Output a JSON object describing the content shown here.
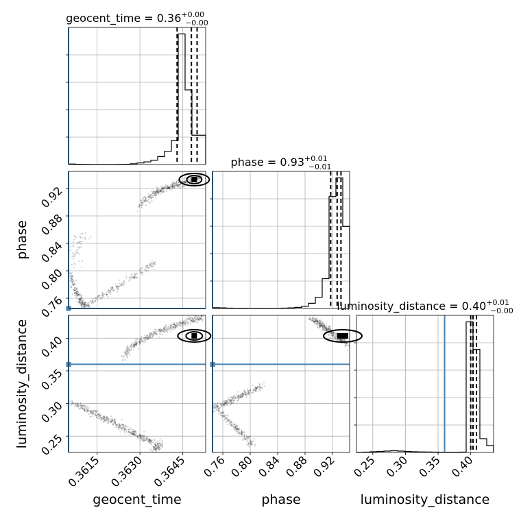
{
  "chart_data": {
    "type": "corner",
    "parameters": [
      "geocent_time",
      "phase",
      "luminosity_distance"
    ],
    "axis_labels": [
      "geocent_time",
      "phase",
      "luminosity_distance"
    ],
    "grid": true,
    "truths": {
      "geocent_time": 3.6005,
      "phase": 0.745,
      "luminosity_distance": 0.36
    },
    "truth_color": "#4682b4",
    "diagonal": [
      {
        "param": "geocent_time",
        "title_main": "geocent_time = 0.36",
        "title_sup": "+0.00",
        "title_sub": "−0.00",
        "xlim": [
          3.6005,
          3.6053
        ],
        "ticks": [
          3.6015,
          3.603,
          3.6045
        ],
        "tick_labels": [
          "0.3615",
          "0.3630",
          "0.3645"
        ],
        "quantiles": [
          3.6043,
          3.6048,
          3.605
        ],
        "bin_edges": [
          3.6005,
          3.60074,
          3.60098,
          3.60122,
          3.60146,
          3.6017,
          3.60194,
          3.60218,
          3.60242,
          3.60266,
          3.6029,
          3.60314,
          3.60338,
          3.60362,
          3.60386,
          3.6041,
          3.60434,
          3.60458,
          3.60482,
          3.60506,
          3.6053
        ],
        "counts": [
          1,
          0.5,
          0.3,
          0.2,
          0.2,
          0.2,
          0.2,
          0.3,
          0.5,
          1.5,
          3,
          5,
          8,
          15,
          25,
          45,
          245,
          140,
          55,
          55
        ]
      },
      {
        "param": "phase",
        "title_main": "phase = 0.93",
        "title_sup": "+0.01",
        "title_sub": "−0.01",
        "xlim": [
          0.745,
          0.945
        ],
        "ticks": [
          0.76,
          0.8,
          0.84,
          0.88,
          0.92
        ],
        "tick_labels": [
          "0.76",
          "0.80",
          "0.84",
          "0.88",
          "0.92"
        ],
        "quantiles": [
          0.9174,
          0.9268,
          0.9324
        ],
        "bin_edges": [
          0.745,
          0.755,
          0.765,
          0.775,
          0.785,
          0.795,
          0.805,
          0.815,
          0.825,
          0.835,
          0.845,
          0.855,
          0.865,
          0.875,
          0.885,
          0.895,
          0.905,
          0.915,
          0.925,
          0.935,
          0.945
        ],
        "counts": [
          1,
          0.8,
          0.5,
          0.4,
          0.4,
          0.3,
          0.2,
          0.2,
          0.3,
          0.3,
          0.5,
          0.8,
          1.5,
          3,
          7,
          15,
          40,
          150,
          175,
          110
        ]
      },
      {
        "param": "luminosity_distance",
        "title_main": "luminosity_distance = 0.40",
        "title_sup": "+0.01",
        "title_sub": "−0.00",
        "xlim": [
          0.225,
          0.435
        ],
        "ticks": [
          0.25,
          0.3,
          0.35,
          0.4
        ],
        "tick_labels": [
          "0.25",
          "0.30",
          "0.35",
          "0.40"
        ],
        "quantiles": [
          0.4,
          0.4035,
          0.4088
        ],
        "bin_edges": [
          0.225,
          0.2355,
          0.246,
          0.2565,
          0.267,
          0.2775,
          0.288,
          0.2985,
          0.309,
          0.3195,
          0.33,
          0.3405,
          0.351,
          0.3615,
          0.372,
          0.3825,
          0.393,
          0.4035,
          0.414,
          0.4245,
          0.435
        ],
        "counts": [
          0.3,
          0.5,
          1,
          1.5,
          2,
          2.5,
          2,
          1.5,
          1,
          0.8,
          0.6,
          0.5,
          0.4,
          0.4,
          0.4,
          0.5,
          190,
          150,
          20,
          10
        ]
      }
    ],
    "offdiagonal": [
      {
        "x": "geocent_time",
        "y": "phase",
        "ylim": [
          0.745,
          0.945
        ],
        "yticks": [
          0.76,
          0.8,
          0.84,
          0.88,
          0.92
        ],
        "ytick_labels": [
          "0.76",
          "0.80",
          "0.84",
          "0.88",
          "0.92"
        ]
      },
      {
        "x": "geocent_time",
        "y": "luminosity_distance",
        "ylim": [
          0.225,
          0.435
        ],
        "yticks": [
          0.25,
          0.3,
          0.35,
          0.4
        ],
        "ytick_labels": [
          "0.25",
          "0.30",
          "0.35",
          "0.40"
        ]
      },
      {
        "x": "phase",
        "y": "luminosity_distance"
      }
    ]
  }
}
